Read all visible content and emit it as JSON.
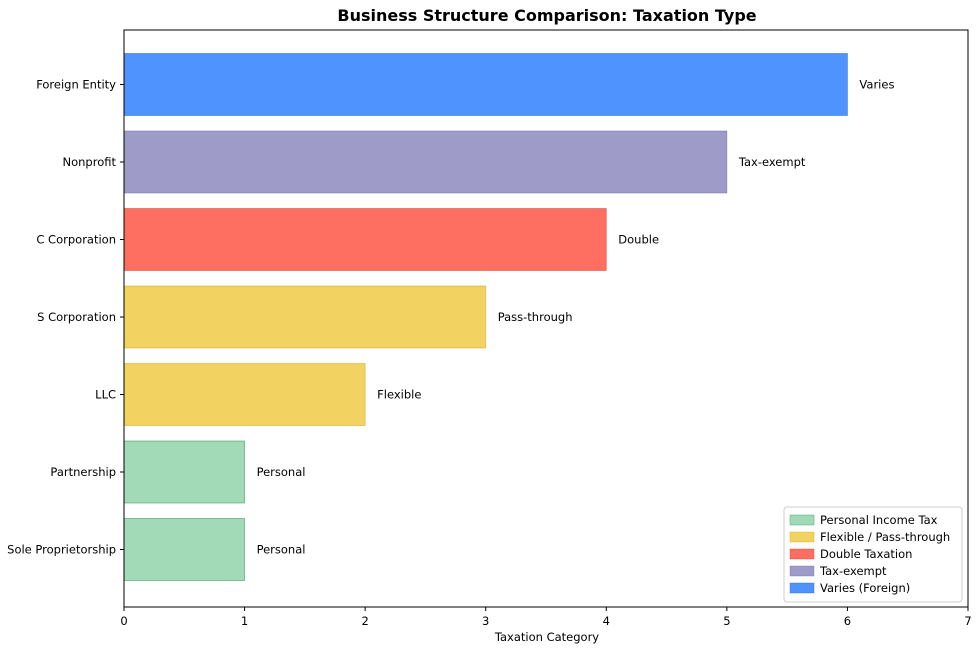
{
  "chart_data": {
    "type": "bar",
    "orientation": "horizontal",
    "title": "Business Structure Comparison: Taxation Type",
    "xlabel": "Taxation Category",
    "ylabel": "",
    "xlim": [
      0,
      7
    ],
    "xticks": [
      0,
      1,
      2,
      3,
      4,
      5,
      6,
      7
    ],
    "grid": false,
    "legend_position": "bottom-right",
    "categories": [
      "Sole Proprietorship",
      "Partnership",
      "LLC",
      "S Corporation",
      "C Corporation",
      "Nonprofit",
      "Foreign Entity"
    ],
    "values": [
      1,
      1,
      2,
      3,
      4,
      5,
      6
    ],
    "bar_labels": [
      "Personal",
      "Personal",
      "Flexible",
      "Pass-through",
      "Double",
      "Tax-exempt",
      "Varies"
    ],
    "bar_groups": [
      "personal",
      "personal",
      "flexible",
      "flexible",
      "double",
      "exempt",
      "varies"
    ],
    "legend": [
      {
        "key": "personal",
        "label": "Personal Income Tax",
        "color": "#a2d9b6"
      },
      {
        "key": "flexible",
        "label": "Flexible / Pass-through",
        "color": "#f2d361"
      },
      {
        "key": "double",
        "label": "Double Taxation",
        "color": "#fe6f61"
      },
      {
        "key": "exempt",
        "label": "Tax-exempt",
        "color": "#9e9bc9"
      },
      {
        "key": "varies",
        "label": "Varies (Foreign)",
        "color": "#4f94fe"
      }
    ],
    "bar_edge_colors": {
      "personal": "#2e8b57",
      "flexible": "#d4a017",
      "double": "#d33c2e",
      "exempt": "#6f6aa8",
      "varies": "#1f5fd1"
    }
  }
}
